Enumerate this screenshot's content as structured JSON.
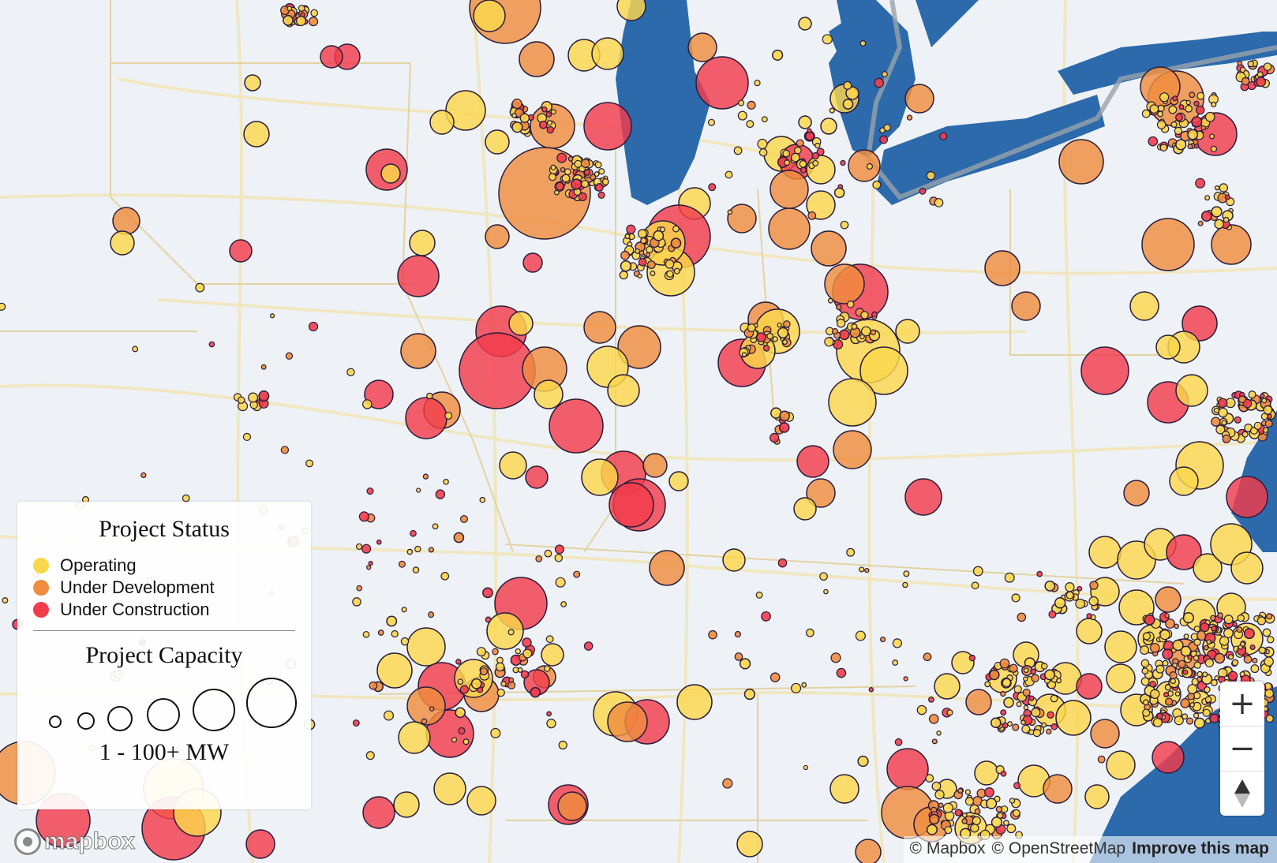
{
  "map": {
    "colors": {
      "background": "#eef2f6",
      "water": "#2c6aac",
      "border_line": "#9aa2ab",
      "road": "#f1e6b8",
      "state_border": "#e2d3a3",
      "operating": "#fbd74c",
      "under_development": "#ef8c3e",
      "under_construction": "#f23c4c",
      "marker_stroke": "#2a1c3c"
    }
  },
  "legend": {
    "status_title": "Project Status",
    "status_items": [
      {
        "label": "Operating",
        "color": "#fbd74c"
      },
      {
        "label": "Under Development",
        "color": "#ef8c3e"
      },
      {
        "label": "Under Construction",
        "color": "#f23c4c"
      }
    ],
    "capacity_title": "Project Capacity",
    "capacity_caption": "1 - 100+ MW"
  },
  "controls": {
    "zoom_in_label": "+",
    "zoom_out_label": "−",
    "compass_icon": "compass-icon"
  },
  "attribution": {
    "mapbox": "© Mapbox",
    "osm": "© OpenStreetMap",
    "improve": "Improve this map"
  },
  "logo": {
    "text": "mapbox"
  }
}
